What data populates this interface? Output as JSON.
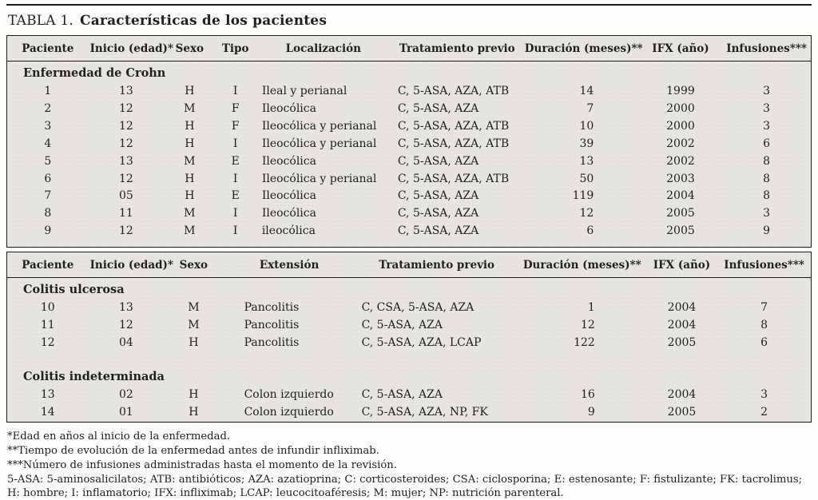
{
  "title": {
    "prefix": "TABLA 1.",
    "text": "Características de los pacientes"
  },
  "crohn_table": {
    "headers": [
      "Paciente",
      "Inicio (edad)*",
      "Sexo",
      "Tipo",
      "Localización",
      "Tratamiento previo",
      "Duración (meses)**",
      "IFX (año)",
      "Infusiones***"
    ],
    "sections": [
      {
        "label": "Enfermedad de Crohn",
        "rows": [
          [
            "1",
            "13",
            "H",
            "I",
            "Ileal y perianal",
            "C, 5-ASA, AZA, ATB",
            "14",
            "1999",
            "3"
          ],
          [
            "2",
            "12",
            "M",
            "F",
            "Ileocólica",
            "C, 5-ASA, AZA",
            "7",
            "2000",
            "3"
          ],
          [
            "3",
            "12",
            "H",
            "F",
            "Ileocólica y perianal",
            "C, 5-ASA, AZA, ATB",
            "10",
            "2000",
            "3"
          ],
          [
            "4",
            "12",
            "H",
            "I",
            "Ileocólica y perianal",
            "C, 5-ASA, AZA, ATB",
            "39",
            "2002",
            "6"
          ],
          [
            "5",
            "13",
            "M",
            "E",
            "Ileocólica",
            "C, 5-ASA, AZA",
            "13",
            "2002",
            "8"
          ],
          [
            "6",
            "12",
            "H",
            "I",
            "Ileocólica y perianal",
            "C, 5-ASA, AZA, ATB",
            "50",
            "2003",
            "8"
          ],
          [
            "7",
            "05",
            "H",
            "E",
            "Ileocólica",
            "C, 5-ASA, AZA",
            "119",
            "2004",
            "8"
          ],
          [
            "8",
            "11",
            "M",
            "I",
            "Ileocólica",
            "C, 5-ASA, AZA",
            "12",
            "2005",
            "3"
          ],
          [
            "9",
            "12",
            "M",
            "I",
            "ileocólica",
            "C, 5-ASA, AZA",
            "6",
            "2005",
            "9"
          ]
        ]
      }
    ]
  },
  "colitis_table": {
    "headers": [
      "Paciente",
      "Inicio (edad)*",
      "Sexo",
      "Extensión",
      "Tratamiento previo",
      "Duración (meses)**",
      "IFX (año)",
      "Infusiones***"
    ],
    "sections": [
      {
        "label": "Colitis ulcerosa",
        "rows": [
          [
            "10",
            "13",
            "M",
            "Pancolitis",
            "C, CSA, 5-ASA, AZA",
            "1",
            "2004",
            "7"
          ],
          [
            "11",
            "12",
            "M",
            "Pancolitis",
            "C, 5-ASA, AZA",
            "12",
            "2004",
            "8"
          ],
          [
            "12",
            "04",
            "H",
            "Pancolitis",
            "C, 5-ASA, AZA, LCAP",
            "122",
            "2005",
            "6"
          ]
        ]
      },
      {
        "label": "Colitis indeterminada",
        "rows": [
          [
            "13",
            "02",
            "H",
            "Colon izquierdo",
            "C, 5-ASA, AZA",
            "16",
            "2004",
            "3"
          ],
          [
            "14",
            "01",
            "H",
            "Colon izquierdo",
            "C, 5-ASA, AZA, NP, FK",
            "9",
            "2005",
            "2"
          ]
        ]
      }
    ]
  },
  "footnotes": [
    "*Edad en años al inicio de la enfermedad.",
    "**Tiempo de evolución de la enfermedad antes de infundir infliximab.",
    "***Número de infusiones administradas hasta el momento de la revisión.",
    "5-ASA: 5-aminosalicilatos; ATB: antibióticos; AZA: azatioprina; C: corticosteroides; CSA: ciclosporina; E: estenosante; F: fistulizante; FK: tacrolimus; H: hombre; I: inflamatorio; IFX: infliximab; LCAP: leucocitoaféresis; M: mujer; NP: nutrición parenteral."
  ],
  "colors": {
    "table_background": "#e7e5e1",
    "border": "#1d1c1a",
    "text": "#22211f"
  }
}
